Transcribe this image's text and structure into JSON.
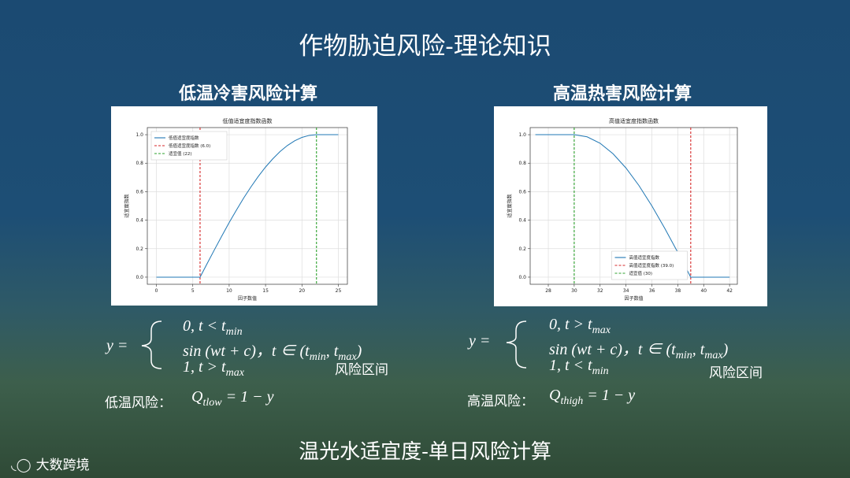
{
  "slide_title": "作物胁迫风险-理论知识",
  "left": {
    "heading": "低温冷害风险计算",
    "formula": {
      "lhs": "y =",
      "cases": [
        [
          "0,  t < t",
          "min"
        ],
        [
          "sin (wt + c)，t ∈ (t",
          "min",
          ", t",
          "max",
          ")"
        ],
        [
          "1,  t > t",
          "max"
        ]
      ],
      "note": "风险区间"
    },
    "risk_label": "低温风险：",
    "risk_formula": [
      "Q",
      "tlow",
      " = 1 − y"
    ]
  },
  "right": {
    "heading": "高温热害风险计算",
    "formula": {
      "lhs": "y =",
      "cases": [
        [
          "0,  t > t",
          "max"
        ],
        [
          "sin (wt + c)，t ∈ (t",
          "min",
          ", t",
          "max",
          ")"
        ],
        [
          "1,  t < t",
          "min"
        ]
      ],
      "note": "风险区间"
    },
    "risk_label": "高温风险：",
    "risk_formula": [
      "Q",
      "thigh",
      " = 1 − y"
    ]
  },
  "footer": "温光水适宜度-单日风险计算",
  "logo": "大数跨境",
  "chart_data": [
    {
      "type": "line",
      "title": "低值适宜度指数函数",
      "x_label": "因子数值",
      "y_label": "适宜度指数",
      "xlim": [
        -1.25,
        26.25
      ],
      "xticks": [
        0,
        5,
        10,
        15,
        20,
        25
      ],
      "ylim": [
        -0.05,
        1.05
      ],
      "yticks": [
        {
          "value": 0,
          "label": "0.0"
        },
        {
          "value": 0.2,
          "label": "0.2"
        },
        {
          "value": 0.4,
          "label": "0.4"
        },
        {
          "value": 0.6,
          "label": "0.6"
        },
        {
          "value": 0.8,
          "label": "0.8"
        },
        {
          "value": 1,
          "label": "1.0"
        }
      ],
      "grid": true,
      "legend": "upper left",
      "series": [
        {
          "name": "低值适宜度指数",
          "color": "#1f77b4",
          "x": [
            0,
            1,
            2,
            3,
            4,
            5,
            6,
            7,
            8,
            9,
            10,
            11,
            12,
            13,
            14,
            15,
            16,
            17,
            18,
            19,
            20,
            21,
            22,
            23,
            24,
            25
          ],
          "values": [
            0,
            0,
            0,
            0,
            0,
            0,
            0,
            0.098,
            0.195,
            0.29,
            0.383,
            0.471,
            0.556,
            0.634,
            0.707,
            0.773,
            0.831,
            0.882,
            0.924,
            0.957,
            0.981,
            0.995,
            1,
            1,
            1,
            1
          ]
        }
      ],
      "vlines": [
        {
          "name": "低值适宜度指数 (6.0)",
          "color": "#d62728",
          "x": 6
        },
        {
          "name": "适宜值 (22)",
          "color": "#2ca02c",
          "x": 22
        }
      ]
    },
    {
      "type": "line",
      "title": "高值适宜度指数函数",
      "x_label": "因子数值",
      "y_label": "适宜度指数",
      "xlim": [
        26.6,
        42.6
      ],
      "xticks": [
        28,
        30,
        32,
        34,
        36,
        38,
        40,
        42
      ],
      "ylim": [
        -0.05,
        1.05
      ],
      "yticks": [
        {
          "value": 0,
          "label": "0.0"
        },
        {
          "value": 0.2,
          "label": "0.2"
        },
        {
          "value": 0.4,
          "label": "0.4"
        },
        {
          "value": 0.6,
          "label": "0.6"
        },
        {
          "value": 0.8,
          "label": "0.8"
        },
        {
          "value": 1,
          "label": "1.0"
        }
      ],
      "grid": true,
      "legend": "lower center",
      "series": [
        {
          "name": "高值适宜度指数",
          "color": "#1f77b4",
          "x": [
            27,
            28,
            29,
            30,
            31,
            32,
            33,
            34,
            35,
            36,
            37,
            38,
            39,
            40,
            41,
            42
          ],
          "values": [
            1,
            1,
            1,
            1,
            0.985,
            0.94,
            0.866,
            0.766,
            0.643,
            0.5,
            0.342,
            0.174,
            0,
            0,
            0,
            0
          ]
        }
      ],
      "vlines": [
        {
          "name": "高值适宜度指数 (39.0)",
          "color": "#d62728",
          "x": 39
        },
        {
          "name": "适宜值 (30)",
          "color": "#2ca02c",
          "x": 30
        }
      ]
    }
  ]
}
